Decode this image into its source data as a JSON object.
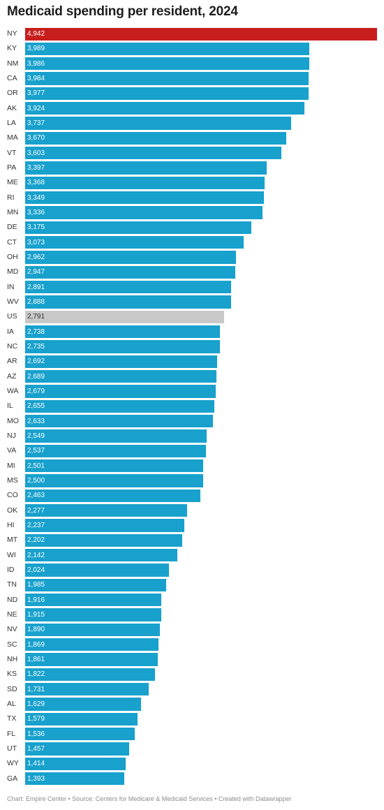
{
  "title": "Medicaid spending per resident, 2024",
  "footer": "Chart: Empire Center • Source: Centers for Medicare & Medicaid Services • Created with Datawrapper",
  "colors": {
    "default": "#18a1cd",
    "highlight": "#c71e1d",
    "us": "#c8c8c8"
  },
  "chart_data": {
    "type": "bar",
    "orientation": "horizontal",
    "title": "Medicaid spending per resident, 2024",
    "xlim": [
      0,
      4942
    ],
    "grid": false,
    "highlight": {
      "NY": "highlight",
      "US": "us"
    },
    "categories": [
      "NY",
      "KY",
      "NM",
      "CA",
      "OR",
      "AK",
      "LA",
      "MA",
      "VT",
      "PA",
      "ME",
      "RI",
      "MN",
      "DE",
      "CT",
      "OH",
      "MD",
      "IN",
      "WV",
      "US",
      "IA",
      "NC",
      "AR",
      "AZ",
      "WA",
      "IL",
      "MO",
      "NJ",
      "VA",
      "MI",
      "MS",
      "CO",
      "OK",
      "HI",
      "MT",
      "WI",
      "ID",
      "TN",
      "ND",
      "NE",
      "NV",
      "SC",
      "NH",
      "KS",
      "SD",
      "AL",
      "TX",
      "FL",
      "UT",
      "WY",
      "GA"
    ],
    "values": [
      4942,
      3989,
      3986,
      3984,
      3977,
      3924,
      3737,
      3670,
      3603,
      3397,
      3368,
      3349,
      3336,
      3175,
      3073,
      2962,
      2947,
      2891,
      2888,
      2791,
      2738,
      2735,
      2692,
      2689,
      2679,
      2655,
      2633,
      2549,
      2537,
      2501,
      2500,
      2463,
      2277,
      2237,
      2202,
      2142,
      2024,
      1985,
      1916,
      1915,
      1890,
      1869,
      1861,
      1822,
      1731,
      1629,
      1579,
      1536,
      1457,
      1414,
      1393
    ],
    "value_labels": [
      "4,942",
      "3,989",
      "3,986",
      "3,984",
      "3,977",
      "3,924",
      "3,737",
      "3,670",
      "3,603",
      "3,397",
      "3,368",
      "3,349",
      "3,336",
      "3,175",
      "3,073",
      "2,962",
      "2,947",
      "2,891",
      "2,888",
      "2,791",
      "2,738",
      "2,735",
      "2,692",
      "2,689",
      "2,679",
      "2,655",
      "2,633",
      "2,549",
      "2,537",
      "2,501",
      "2,500",
      "2,463",
      "2,277",
      "2,237",
      "2,202",
      "2,142",
      "2,024",
      "1,985",
      "1,916",
      "1,915",
      "1,890",
      "1,869",
      "1,861",
      "1,822",
      "1,731",
      "1,629",
      "1,579",
      "1,536",
      "1,457",
      "1,414",
      "1,393"
    ]
  }
}
